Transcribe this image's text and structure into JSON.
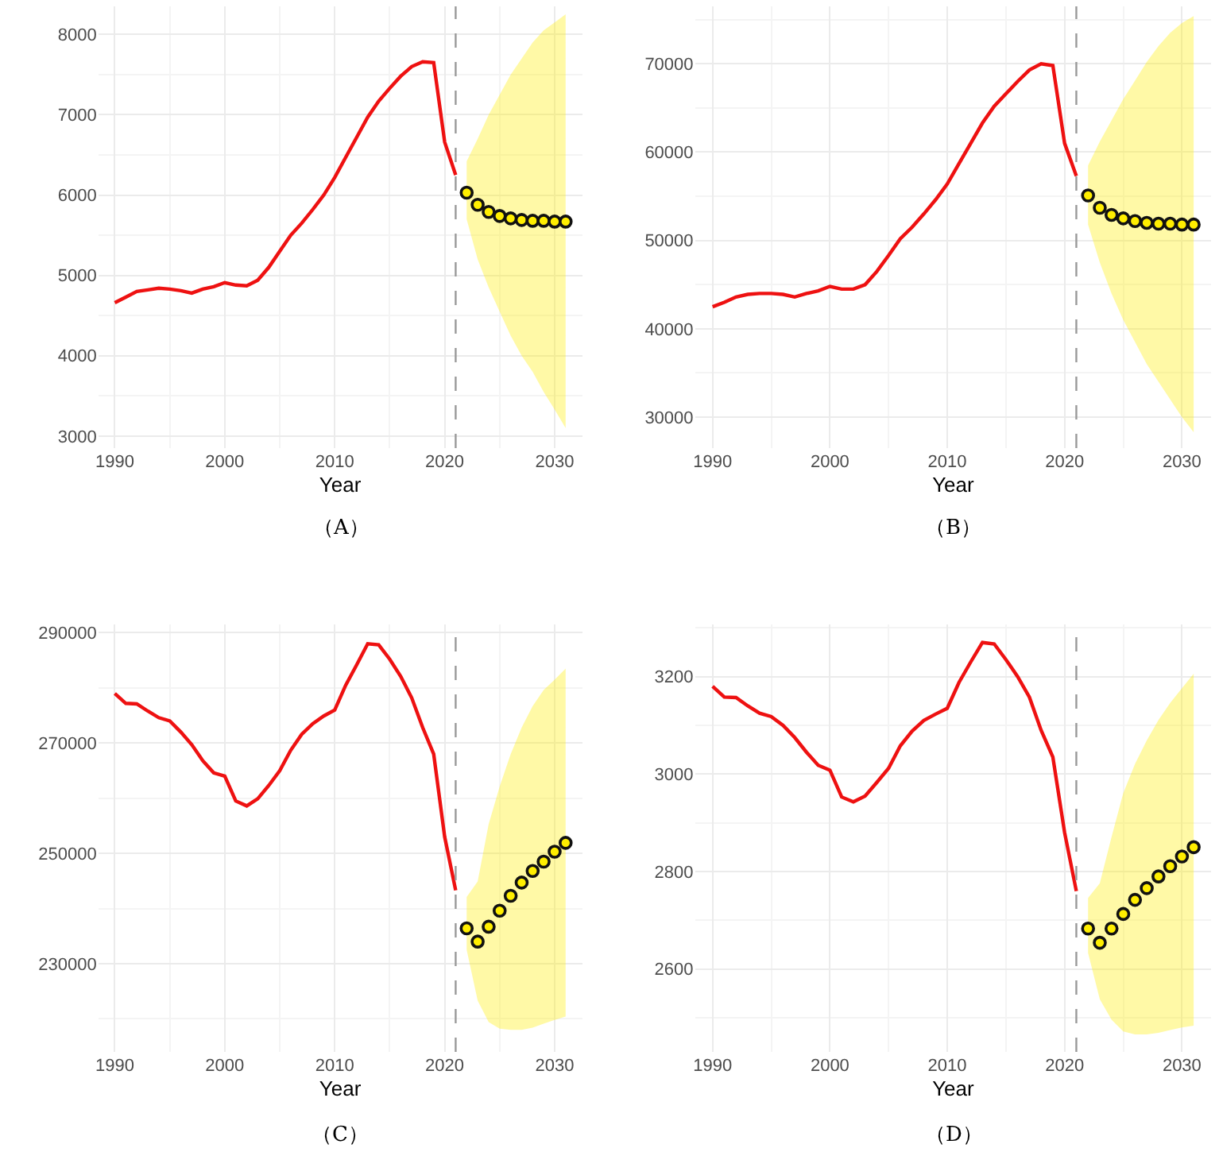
{
  "chart_data": [
    {
      "type": "line",
      "xlabel": "Year",
      "annotations": [
        "（A）"
      ],
      "xlim": [
        1988.5,
        2032.5
      ],
      "ylim": [
        2850,
        8350
      ],
      "xticks": [
        1990,
        2000,
        2010,
        2020,
        2030
      ],
      "yticks": [
        3000,
        4000,
        5000,
        6000,
        7000,
        8000
      ],
      "grid": true,
      "ref_lines": [
        {
          "axis": "x",
          "value": 2021,
          "color": "#999999",
          "line_style": "dashed"
        }
      ],
      "series": [
        {
          "color": "#ee1111",
          "x": [
            1990,
            1991,
            1992,
            1993,
            1994,
            1995,
            1996,
            1997,
            1998,
            1999,
            2000,
            2001,
            2002,
            2003,
            2004,
            2005,
            2006,
            2007,
            2008,
            2009,
            2010,
            2011,
            2012,
            2013,
            2014,
            2015,
            2016,
            2017,
            2018,
            2019,
            2020,
            2021
          ],
          "values": [
            4660,
            4730,
            4800,
            4820,
            4840,
            4830,
            4810,
            4780,
            4830,
            4860,
            4910,
            4880,
            4870,
            4940,
            5100,
            5300,
            5500,
            5650,
            5820,
            6000,
            6220,
            6470,
            6720,
            6970,
            7170,
            7330,
            7480,
            7600,
            7660,
            7650,
            6660,
            6250
          ]
        },
        {
          "type": "scatter",
          "marker": "circle",
          "color": "#ffee00",
          "x": [
            2022,
            2023,
            2024,
            2025,
            2026,
            2027,
            2028,
            2029,
            2030,
            2031
          ],
          "values": [
            6030,
            5880,
            5790,
            5740,
            5710,
            5690,
            5680,
            5680,
            5670,
            5670
          ],
          "lower": [
            5700,
            5200,
            4850,
            4550,
            4250,
            4000,
            3800,
            3550,
            3330,
            3100
          ],
          "upper": [
            6420,
            6700,
            7000,
            7250,
            7500,
            7700,
            7900,
            8050,
            8150,
            8250
          ]
        }
      ]
    },
    {
      "type": "line",
      "xlabel": "Year",
      "annotations": [
        "（B）"
      ],
      "xlim": [
        1988.5,
        2032.5
      ],
      "ylim": [
        26500,
        76500
      ],
      "xticks": [
        1990,
        2000,
        2010,
        2020,
        2030
      ],
      "yticks": [
        30000,
        40000,
        50000,
        60000,
        70000
      ],
      "grid": true,
      "ref_lines": [
        {
          "axis": "x",
          "value": 2021,
          "color": "#999999",
          "line_style": "dashed"
        }
      ],
      "series": [
        {
          "color": "#ee1111",
          "x": [
            1990,
            1991,
            1992,
            1993,
            1994,
            1995,
            1996,
            1997,
            1998,
            1999,
            2000,
            2001,
            2002,
            2003,
            2004,
            2005,
            2006,
            2007,
            2008,
            2009,
            2010,
            2011,
            2012,
            2013,
            2014,
            2015,
            2016,
            2017,
            2018,
            2019,
            2020,
            2021
          ],
          "values": [
            42500,
            43000,
            43600,
            43900,
            44000,
            44000,
            43900,
            43600,
            44000,
            44300,
            44800,
            44500,
            44500,
            45000,
            46500,
            48300,
            50200,
            51500,
            53000,
            54600,
            56400,
            58700,
            61000,
            63300,
            65200,
            66600,
            68000,
            69300,
            70000,
            69800,
            61000,
            57300
          ]
        },
        {
          "type": "scatter",
          "marker": "circle",
          "color": "#ffee00",
          "x": [
            2022,
            2023,
            2024,
            2025,
            2026,
            2027,
            2028,
            2029,
            2030,
            2031
          ],
          "values": [
            55100,
            53700,
            52900,
            52500,
            52200,
            52000,
            51900,
            51900,
            51800,
            51800
          ],
          "lower": [
            51800,
            47500,
            44000,
            41000,
            38500,
            36000,
            34000,
            32000,
            30000,
            28300
          ],
          "upper": [
            58500,
            61200,
            63600,
            66000,
            68100,
            70200,
            72000,
            73500,
            74600,
            75400
          ]
        }
      ]
    },
    {
      "type": "line",
      "xlabel": "Year",
      "annotations": [
        "（C）"
      ],
      "xlim": [
        1988.5,
        2032.5
      ],
      "ylim": [
        214000,
        291500
      ],
      "xticks": [
        1990,
        2000,
        2010,
        2020,
        2030
      ],
      "yticks": [
        230000,
        250000,
        270000,
        290000
      ],
      "grid": true,
      "ref_lines": [
        {
          "axis": "x",
          "value": 2021,
          "color": "#999999",
          "line_style": "dashed"
        }
      ],
      "series": [
        {
          "color": "#ee1111",
          "x": [
            1990,
            1991,
            1992,
            1993,
            1994,
            1995,
            1996,
            1997,
            1998,
            1999,
            2000,
            2001,
            2002,
            2003,
            2004,
            2005,
            2006,
            2007,
            2008,
            2009,
            2010,
            2011,
            2012,
            2013,
            2014,
            2015,
            2016,
            2017,
            2018,
            2019,
            2020,
            2021
          ],
          "values": [
            279000,
            277200,
            277100,
            275800,
            274600,
            274000,
            272000,
            269700,
            266800,
            264600,
            264000,
            259500,
            258600,
            259900,
            262300,
            265000,
            268700,
            271600,
            273500,
            274900,
            276000,
            280500,
            284200,
            288000,
            287800,
            285200,
            282100,
            278200,
            272800,
            268000,
            253000,
            243300
          ]
        },
        {
          "type": "scatter",
          "marker": "circle",
          "color": "#ffee00",
          "x": [
            2022,
            2023,
            2024,
            2025,
            2026,
            2027,
            2028,
            2029,
            2030,
            2031
          ],
          "values": [
            236400,
            234000,
            236700,
            239600,
            242300,
            244700,
            246800,
            248500,
            250300,
            251900
          ],
          "lower": [
            232500,
            223300,
            219400,
            218200,
            218000,
            218000,
            218400,
            219100,
            219800,
            220400
          ],
          "upper": [
            242100,
            244900,
            255300,
            262100,
            268000,
            272800,
            276700,
            279600,
            281500,
            283500
          ]
        }
      ]
    },
    {
      "type": "line",
      "xlabel": "Year",
      "annotations": [
        "（D）"
      ],
      "xlim": [
        1988.5,
        2032.5
      ],
      "ylim": [
        2430,
        3307
      ],
      "xticks": [
        1990,
        2000,
        2010,
        2020,
        2030
      ],
      "yticks": [
        2600,
        2800,
        3000,
        3200
      ],
      "grid": true,
      "ref_lines": [
        {
          "axis": "x",
          "value": 2021,
          "color": "#999999",
          "line_style": "dashed"
        }
      ],
      "series": [
        {
          "color": "#ee1111",
          "x": [
            1990,
            1991,
            1992,
            1993,
            1994,
            1995,
            1996,
            1997,
            1998,
            1999,
            2000,
            2001,
            2002,
            2003,
            2004,
            2005,
            2006,
            2007,
            2008,
            2009,
            2010,
            2011,
            2012,
            2013,
            2014,
            2015,
            2016,
            2017,
            2018,
            2019,
            2020,
            2021
          ],
          "values": [
            3180,
            3158,
            3157,
            3140,
            3125,
            3118,
            3100,
            3075,
            3045,
            3018,
            3008,
            2953,
            2943,
            2955,
            2983,
            3012,
            3058,
            3088,
            3110,
            3123,
            3135,
            3188,
            3230,
            3270,
            3267,
            3235,
            3200,
            3158,
            3090,
            3035,
            2880,
            2760
          ]
        },
        {
          "type": "scatter",
          "marker": "circle",
          "color": "#ffee00",
          "x": [
            2022,
            2023,
            2024,
            2025,
            2026,
            2027,
            2028,
            2029,
            2030,
            2031
          ],
          "values": [
            2683,
            2654,
            2683,
            2713,
            2742,
            2766,
            2790,
            2811,
            2831,
            2850
          ],
          "lower": [
            2633,
            2538,
            2496,
            2472,
            2466,
            2466,
            2469,
            2475,
            2480,
            2484
          ],
          "upper": [
            2746,
            2776,
            2871,
            2961,
            3021,
            3069,
            3111,
            3146,
            3176,
            3206
          ]
        }
      ]
    }
  ]
}
